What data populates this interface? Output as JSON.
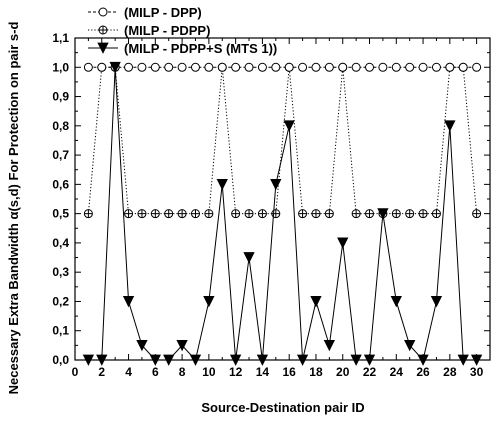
{
  "chart_data": {
    "type": "line",
    "xlabel": "Source-Destination pair ID",
    "ylabel": "Necessary Extra Bandwidth α(s,d) For Protection on pair s-d",
    "xlim": [
      0,
      31
    ],
    "ylim": [
      0,
      1.1
    ],
    "xticks": [
      "0",
      "1",
      "2",
      "3",
      "4",
      "5",
      "6",
      "7",
      "8",
      "9",
      "10",
      "11",
      "12",
      "13",
      "14",
      "15",
      "16",
      "17",
      "18",
      "19",
      "20",
      "21",
      "22",
      "23",
      "24",
      "25",
      "26",
      "27",
      "28",
      "29",
      "30"
    ],
    "yticks": [
      "0,0",
      "0,1",
      "0,2",
      "0,3",
      "0,4",
      "0,5",
      "0,6",
      "0,7",
      "0,8",
      "0,9",
      "1,0",
      "1,1"
    ],
    "x": [
      1,
      2,
      3,
      4,
      5,
      6,
      7,
      8,
      9,
      10,
      11,
      12,
      13,
      14,
      15,
      16,
      17,
      18,
      19,
      20,
      21,
      22,
      23,
      24,
      25,
      26,
      27,
      28,
      29,
      30
    ],
    "legend_position": "top-left",
    "grid": false,
    "series": [
      {
        "name": "(MILP - DPP)",
        "marker": "open-circle",
        "line_style": "dashed",
        "values": [
          1,
          1,
          1,
          1,
          1,
          1,
          1,
          1,
          1,
          1,
          1,
          1,
          1,
          1,
          1,
          1,
          1,
          1,
          1,
          1,
          1,
          1,
          1,
          1,
          1,
          1,
          1,
          1,
          1,
          1
        ]
      },
      {
        "name": "(MILP - PDPP)",
        "marker": "circle-plus",
        "line_style": "dotted",
        "values": [
          0.5,
          1,
          1,
          0.5,
          0.5,
          0.5,
          0.5,
          0.5,
          0.5,
          0.5,
          1,
          0.5,
          0.5,
          0.5,
          0.5,
          1,
          0.5,
          0.5,
          0.5,
          1,
          0.5,
          0.5,
          0.5,
          0.5,
          0.5,
          0.5,
          0.5,
          1,
          1,
          0.5
        ]
      },
      {
        "name": "(MILP - PDPP+S (MTS 1))",
        "marker": "filled-down-triangle",
        "line_style": "solid",
        "values": [
          0,
          0,
          1,
          0.2,
          0.05,
          0,
          0,
          0.05,
          0,
          0.2,
          0.6,
          0,
          0.35,
          0,
          0.6,
          0.8,
          0,
          0.2,
          0.05,
          0.4,
          0,
          0,
          0.5,
          0.2,
          0.05,
          0,
          0.2,
          0.8,
          0,
          0
        ]
      }
    ]
  }
}
